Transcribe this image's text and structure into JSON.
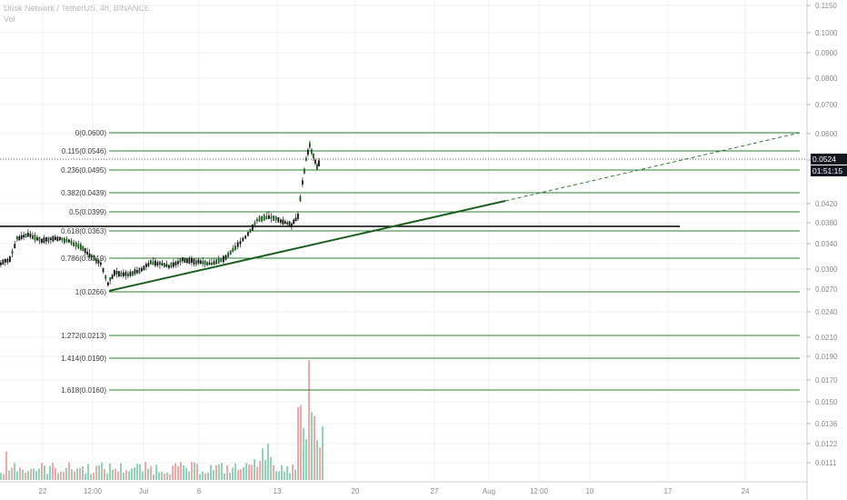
{
  "header": {
    "symbol_line": "Dusk Network / TetherUS, 4h, BINANCE",
    "volume_label": "Vol"
  },
  "price_axis": {
    "labels": [
      "0.1150",
      "0.1000",
      "0.0900",
      "0.0800",
      "0.0700",
      "0.0600",
      "0.0500",
      "0.0420",
      "0.0380",
      "0.0340",
      "0.0300",
      "0.0270",
      "0.0240",
      "0.0210",
      "0.0190",
      "0.0170",
      "0.0150",
      "0.0136",
      "0.0122",
      "0.0111"
    ]
  },
  "time_axis": {
    "labels": [
      "22",
      "12:00",
      "Jul",
      "6",
      "13",
      "20",
      "27",
      "Aug",
      "12:00",
      "10",
      "17",
      "24"
    ]
  },
  "current_price": {
    "value": "0.0524",
    "countdown": "01:51:15"
  },
  "fib_levels": [
    {
      "label": "0(0.0600)",
      "price": 0.06
    },
    {
      "label": "0.115(0.0546)",
      "price": 0.0546
    },
    {
      "label": "0.236(0.0495)",
      "price": 0.0495
    },
    {
      "label": "0.382(0.0439)",
      "price": 0.0439
    },
    {
      "label": "0.5(0.0399)",
      "price": 0.0399
    },
    {
      "label": "0.618(0.0363)",
      "price": 0.0363
    },
    {
      "label": "0.786(0.0319)",
      "price": 0.0319
    },
    {
      "label": "1(0.0266)",
      "price": 0.0266
    },
    {
      "label": "1.272(0.0213)",
      "price": 0.0213
    },
    {
      "label": "1.414(0.0190)",
      "price": 0.019
    },
    {
      "label": "1.618(0.0160)",
      "price": 0.016
    }
  ],
  "colors": {
    "up": "#26a69a",
    "down": "#ef5350",
    "candle_body": "#1b5e20",
    "fib_line": "#2e7d32",
    "trendline": "#1b5e20",
    "grid": "#e6e6e6"
  }
}
